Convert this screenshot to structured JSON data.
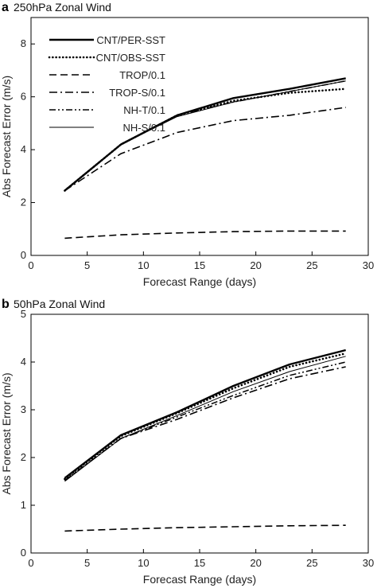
{
  "chart_data": [
    {
      "type": "line",
      "panel_letter": "a",
      "title": "250hPa Zonal Wind",
      "xlabel": "Forecast Range (days)",
      "ylabel": "Abs Forecast Error (m/s)",
      "xlim": [
        0,
        30
      ],
      "ylim": [
        0,
        9
      ],
      "xticks": [
        0,
        5,
        10,
        15,
        20,
        25,
        30
      ],
      "yticks": [
        0,
        2,
        4,
        6,
        8
      ],
      "grid": false,
      "legend_position": "top-left",
      "x": [
        3,
        8,
        13,
        18,
        23,
        28
      ],
      "series": [
        {
          "name": "CNT/PER-SST",
          "style": "solid-thick",
          "values": [
            2.45,
            4.2,
            5.3,
            5.95,
            6.3,
            6.7
          ]
        },
        {
          "name": "CNT/OBS-SST",
          "style": "dotted",
          "values": [
            2.45,
            4.2,
            5.3,
            5.85,
            6.15,
            6.3
          ]
        },
        {
          "name": "TROP/0.1",
          "style": "dashed",
          "values": [
            0.65,
            0.78,
            0.85,
            0.9,
            0.92,
            0.92
          ]
        },
        {
          "name": "TROP-S/0.1",
          "style": "dashdot",
          "values": [
            2.45,
            3.85,
            4.65,
            5.1,
            5.3,
            5.6
          ]
        },
        {
          "name": "NH-T/0.1",
          "style": "dashdotdot",
          "values": [
            2.45,
            4.2,
            5.3,
            5.8,
            6.2,
            6.6
          ]
        },
        {
          "name": "NH-S/0.1",
          "style": "solid-thin",
          "values": [
            2.45,
            4.2,
            5.25,
            5.8,
            6.2,
            6.6
          ]
        }
      ]
    },
    {
      "type": "line",
      "panel_letter": "b",
      "title": "50hPa Zonal Wind",
      "xlabel": "Forecast Range (days)",
      "ylabel": "Abs Forecast Error (m/s)",
      "xlim": [
        0,
        30
      ],
      "ylim": [
        0,
        5
      ],
      "xticks": [
        0,
        5,
        10,
        15,
        20,
        25,
        30
      ],
      "yticks": [
        0,
        1,
        2,
        3,
        4,
        5
      ],
      "grid": false,
      "x": [
        3,
        8,
        13,
        18,
        23,
        28
      ],
      "series": [
        {
          "style": "solid-thick",
          "values": [
            1.57,
            2.47,
            2.95,
            3.5,
            3.95,
            4.25
          ]
        },
        {
          "style": "dotted",
          "values": [
            1.55,
            2.45,
            2.93,
            3.45,
            3.9,
            4.18
          ]
        },
        {
          "style": "dashed",
          "values": [
            0.46,
            0.5,
            0.53,
            0.55,
            0.57,
            0.58
          ]
        },
        {
          "style": "dashdot",
          "values": [
            1.52,
            2.4,
            2.8,
            3.25,
            3.65,
            3.9
          ]
        },
        {
          "style": "dashdotdot",
          "values": [
            1.52,
            2.4,
            2.85,
            3.3,
            3.72,
            4.0
          ]
        },
        {
          "style": "solid-thin",
          "values": [
            1.5,
            2.4,
            2.88,
            3.38,
            3.8,
            4.12
          ]
        }
      ]
    }
  ]
}
